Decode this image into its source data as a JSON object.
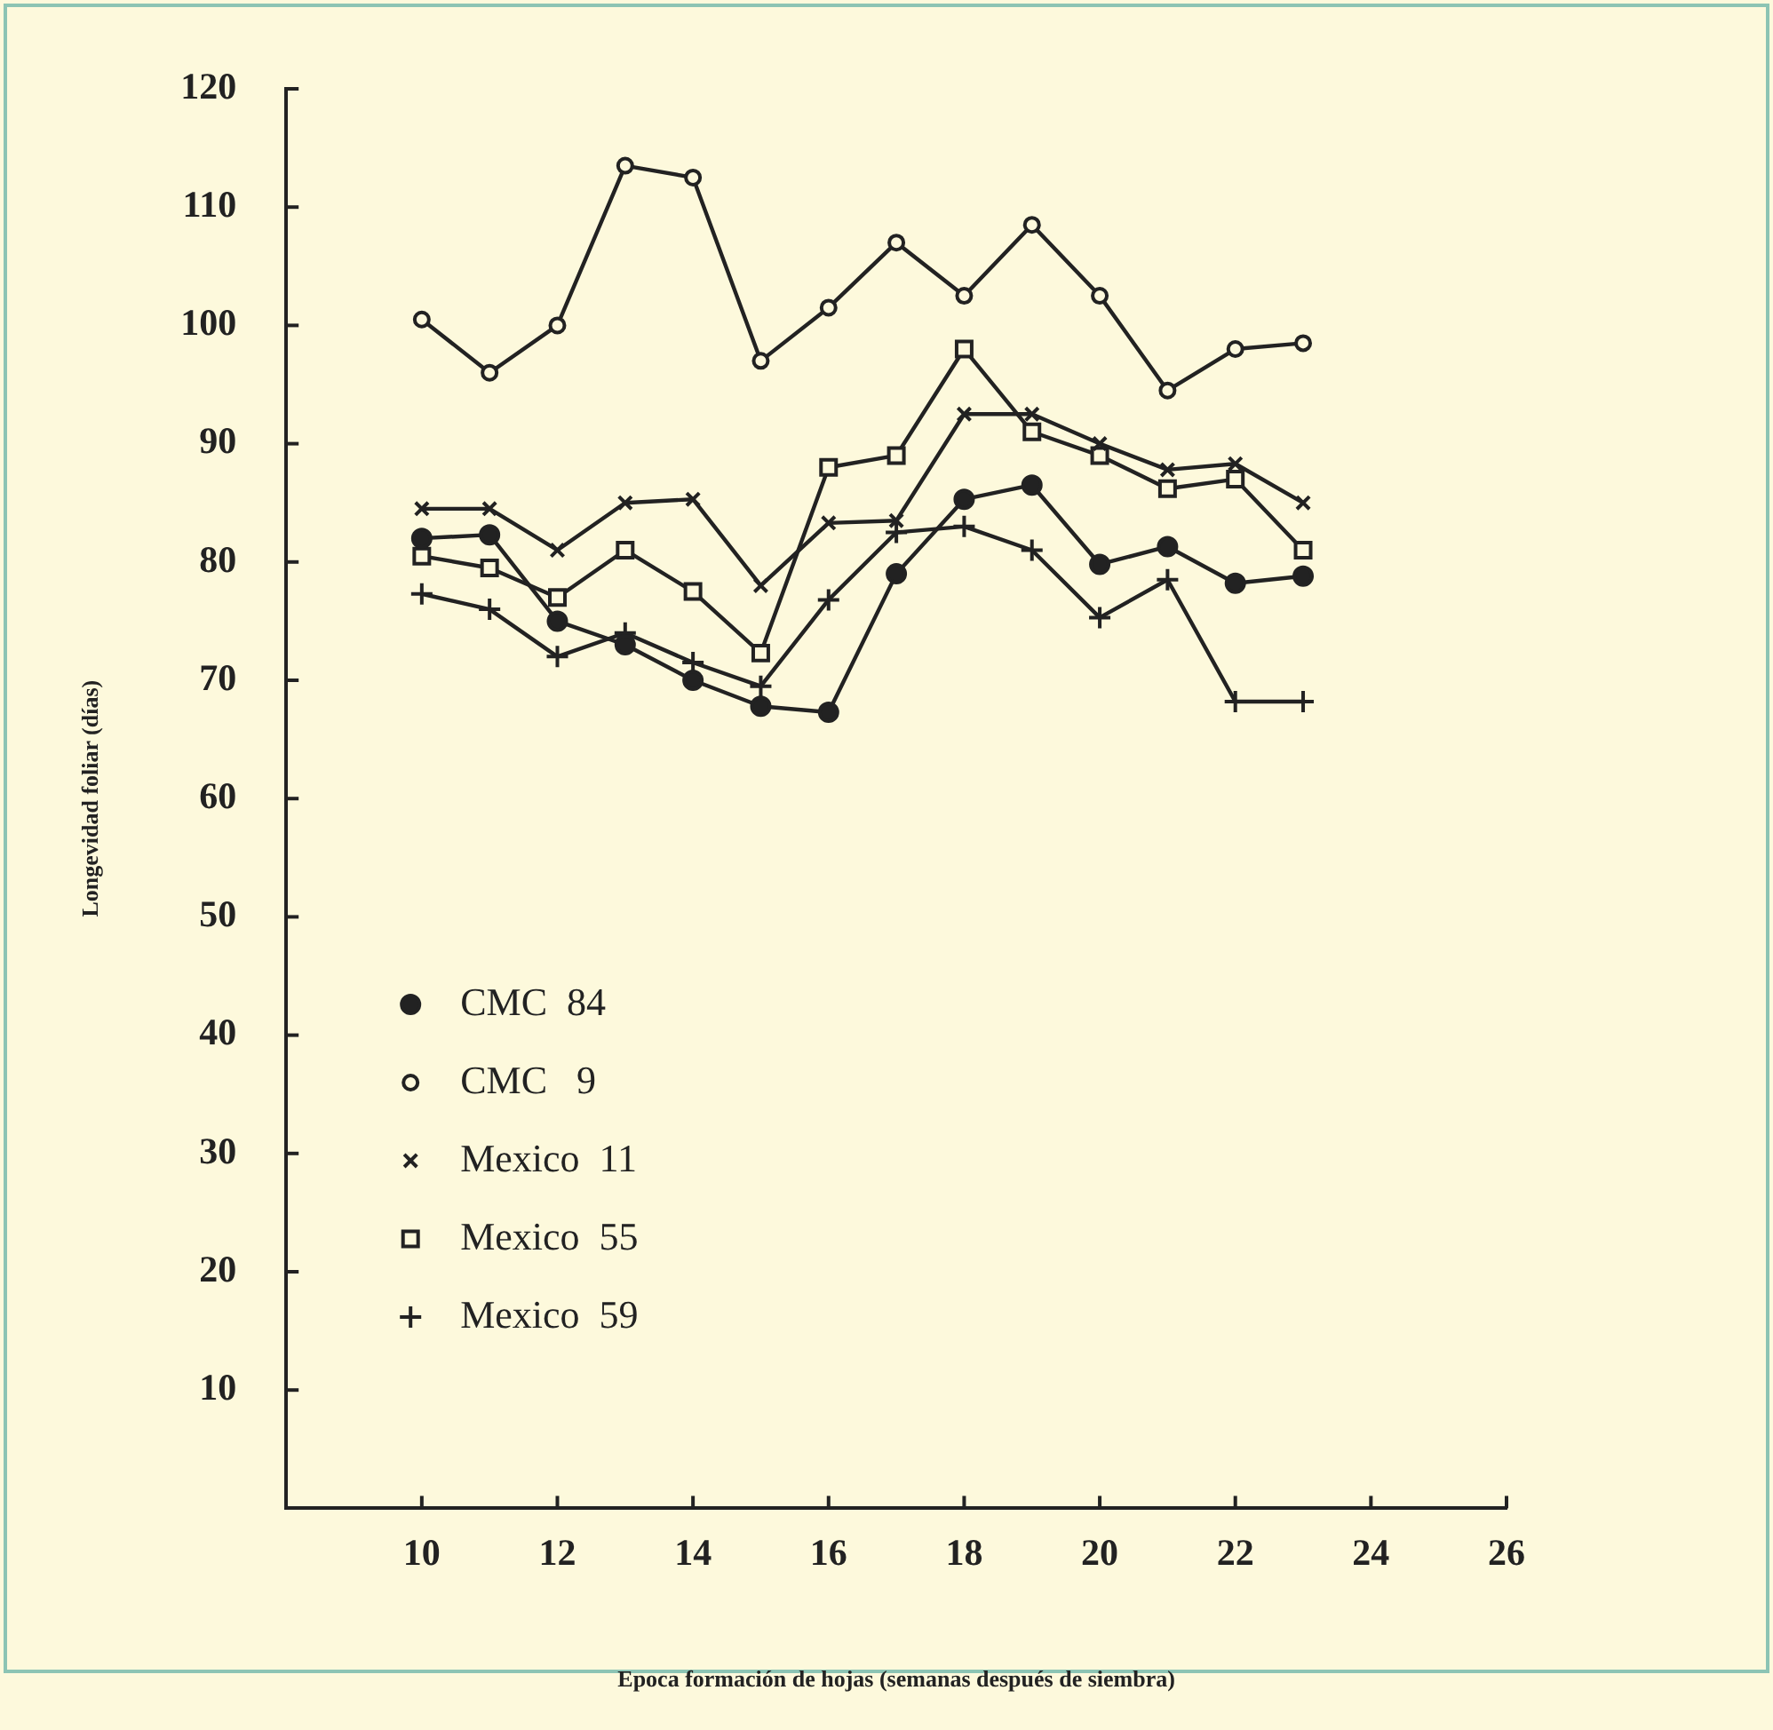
{
  "chart_data": {
    "type": "line",
    "xlabel": "Epoca formación de hojas (semanas después de siembra)",
    "ylabel": "Longevidad foliar (días)",
    "x": [
      10,
      11,
      12,
      13,
      14,
      15,
      16,
      17,
      18,
      19,
      20,
      21,
      22,
      23
    ],
    "xlim": [
      8,
      26
    ],
    "xticks": [
      10,
      12,
      14,
      16,
      18,
      20,
      22,
      24,
      26
    ],
    "ylim": [
      0,
      120
    ],
    "yticks": [
      10,
      20,
      30,
      40,
      50,
      60,
      70,
      80,
      90,
      100,
      110,
      120
    ],
    "grid": false,
    "legend": "left",
    "line_style": "solid",
    "series": [
      {
        "name": "CMC  84",
        "color": "#222222",
        "marker": "circle",
        "values": [
          82,
          82.3,
          75,
          73,
          70,
          67.8,
          67.3,
          79,
          85.3,
          86.5,
          79.8,
          81.3,
          78.2,
          78.8
        ]
      },
      {
        "name": "CMC   9",
        "color": "#222222",
        "marker": "circle-open",
        "values": [
          100.5,
          96,
          100,
          113.5,
          112.5,
          97,
          101.5,
          107,
          102.5,
          108.5,
          102.5,
          94.5,
          98,
          98.5
        ]
      },
      {
        "name": "Mexico  11",
        "color": "#222222",
        "marker": "cross-x",
        "values": [
          84.5,
          84.5,
          81,
          85,
          85.3,
          78,
          83.3,
          83.5,
          92.5,
          92.5,
          90,
          87.8,
          88.3,
          85
        ]
      },
      {
        "name": "Mexico  55",
        "color": "#222222",
        "marker": "square",
        "values": [
          80.5,
          79.5,
          77,
          81,
          77.5,
          72.3,
          88,
          89,
          98,
          91,
          89,
          86.2,
          87,
          81
        ]
      },
      {
        "name": "Mexico  59",
        "color": "#222222",
        "marker": "cross",
        "values": [
          77.3,
          76,
          72,
          74,
          71.5,
          69.5,
          76.8,
          82.5,
          83,
          81,
          75.3,
          78.5,
          68.2,
          68.2
        ]
      }
    ]
  }
}
